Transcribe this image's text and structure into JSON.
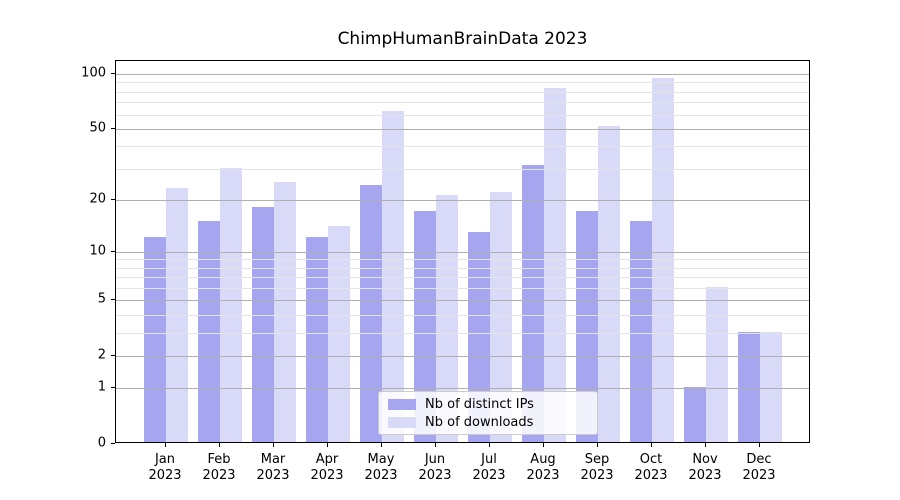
{
  "chart_data": {
    "type": "bar",
    "title": "ChimpHumanBrainData 2023",
    "categories": [
      "Jan",
      "Feb",
      "Mar",
      "Apr",
      "May",
      "Jun",
      "Jul",
      "Aug",
      "Sep",
      "Oct",
      "Nov",
      "Dec"
    ],
    "category_year": "2023",
    "series": [
      {
        "name": "Nb of distinct IPs",
        "color": "#a5a5f0",
        "values": [
          12,
          15,
          18,
          12,
          24,
          17,
          13,
          31,
          17,
          15,
          1,
          3
        ]
      },
      {
        "name": "Nb of downloads",
        "color": "#d9d9f8",
        "values": [
          23,
          30,
          25,
          14,
          62,
          21,
          22,
          83,
          51,
          94,
          6,
          3
        ]
      }
    ],
    "xlabel": "",
    "ylabel": "",
    "yscale": "log1p",
    "ylim": [
      0,
      118
    ],
    "yticks": [
      0,
      1,
      2,
      5,
      10,
      20,
      50,
      100
    ],
    "yticks_minor": [
      3,
      4,
      6,
      7,
      8,
      9,
      30,
      40,
      60,
      70,
      80,
      90
    ],
    "grid": "horizontal gridlines drawn above bars",
    "legend_position": "lower center"
  },
  "colors": {
    "background": "#ffffff",
    "axis": "#000000",
    "text": "#000000",
    "grid_major": "#b0b0b0",
    "grid_minor": "#e4e4e4",
    "legend_border": "#cccccc"
  }
}
